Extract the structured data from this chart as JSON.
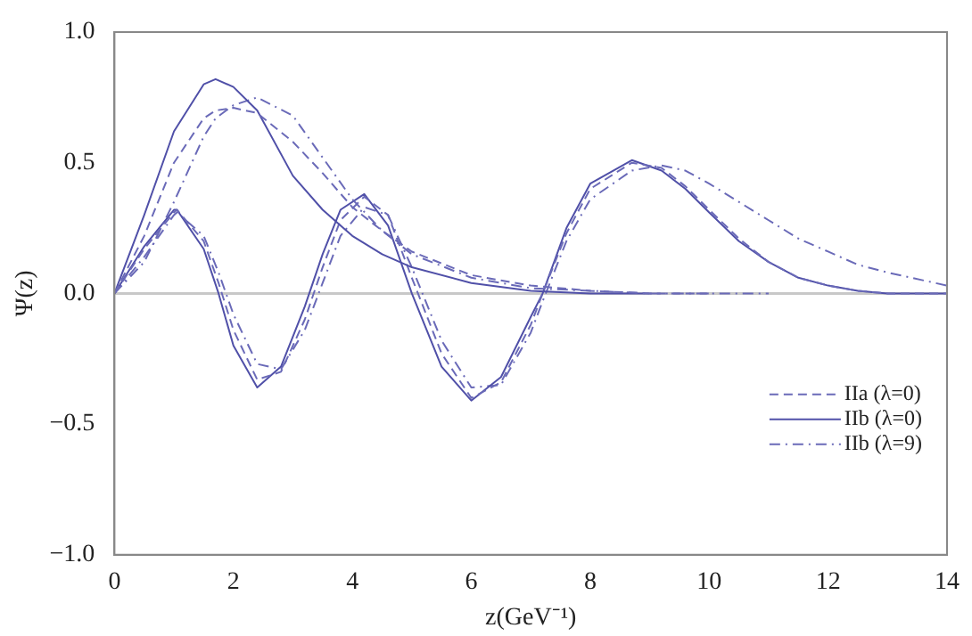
{
  "chart_data": {
    "type": "line",
    "xlabel": "z(GeV⁻¹)",
    "ylabel": "Ψ(z)",
    "xlim": [
      0,
      14
    ],
    "xticks": [
      0,
      2,
      4,
      6,
      8,
      10,
      12,
      14
    ],
    "ylim": [
      -1,
      1
    ],
    "yticks": [
      {
        "value": -1,
        "label": "−1.0"
      },
      {
        "value": -0.5,
        "label": "−0.5"
      },
      {
        "value": 0,
        "label": "0.0"
      },
      {
        "value": 0.5,
        "label": "0.5"
      },
      {
        "value": 1,
        "label": "1.0"
      }
    ],
    "grid": false,
    "legend": "bottom right",
    "marker": "none",
    "ref_lines": [
      {
        "axis": "y",
        "value": 0,
        "label": null,
        "color": "#c8c8c8"
      }
    ],
    "series": [
      {
        "name": "IIa (λ=0)",
        "color": "#6a6ab8",
        "line_style": "dashed",
        "x": [
          0,
          0.5,
          1,
          1.5,
          1.7,
          2,
          2.4,
          3,
          3.5,
          4,
          4.5,
          5,
          6,
          7,
          8,
          9,
          10
        ],
        "values": [
          0,
          0.22,
          0.5,
          0.67,
          0.7,
          0.71,
          0.69,
          0.58,
          0.46,
          0.33,
          0.24,
          0.16,
          0.07,
          0.03,
          0.01,
          0,
          0
        ]
      },
      {
        "name": "IIb (λ=0)",
        "color": "#5050a8",
        "line_style": "solid",
        "x": [
          0,
          0.5,
          1,
          1.5,
          1.7,
          2,
          2.4,
          3,
          3.5,
          4,
          4.5,
          5,
          6,
          7,
          8,
          9
        ],
        "values": [
          0,
          0.3,
          0.62,
          0.8,
          0.82,
          0.79,
          0.7,
          0.45,
          0.32,
          0.22,
          0.15,
          0.1,
          0.04,
          0.01,
          0,
          0
        ]
      },
      {
        "name": "IIb (λ=9)",
        "color": "#6a6ab8",
        "line_style": "dashdot",
        "x": [
          0,
          0.5,
          1,
          1.5,
          1.7,
          2,
          2.4,
          3,
          3.5,
          4,
          4.5,
          5,
          6,
          7,
          8,
          9,
          10,
          11
        ],
        "values": [
          0,
          0.12,
          0.35,
          0.6,
          0.67,
          0.72,
          0.75,
          0.68,
          0.52,
          0.36,
          0.24,
          0.15,
          0.06,
          0.02,
          0.01,
          0,
          0,
          0
        ]
      },
      {
        "color": "#6a6ab8",
        "line_style": "dashed",
        "x": [
          0,
          0.5,
          1,
          1.05,
          1.5,
          1.75,
          2,
          2.4,
          2.8,
          3.2,
          3.5,
          3.8,
          4.2,
          4.6,
          5,
          5.5,
          6,
          6.5,
          7,
          7.2,
          7.6,
          8,
          8.7,
          9.2,
          9.6,
          10,
          10.5,
          11,
          11.5,
          12,
          12.5,
          13,
          14
        ],
        "values": [
          0,
          0.17,
          0.31,
          0.32,
          0.2,
          0.04,
          -0.14,
          -0.33,
          -0.3,
          -0.1,
          0.1,
          0.28,
          0.37,
          0.3,
          0.06,
          -0.23,
          -0.4,
          -0.34,
          -0.12,
          0,
          0.23,
          0.4,
          0.5,
          0.48,
          0.41,
          0.32,
          0.21,
          0.12,
          0.06,
          0.03,
          0.01,
          0,
          0
        ]
      },
      {
        "color": "#5050a8",
        "line_style": "solid",
        "x": [
          0,
          0.5,
          1,
          1.05,
          1.5,
          1.75,
          2,
          2.4,
          2.8,
          3.2,
          3.5,
          3.8,
          4.2,
          4.6,
          5,
          5.5,
          6,
          6.5,
          7,
          7.2,
          7.6,
          8,
          8.7,
          9.2,
          9.6,
          10,
          10.5,
          11,
          11.5,
          12,
          12.5,
          13,
          14
        ],
        "values": [
          0,
          0.18,
          0.32,
          0.32,
          0.17,
          0,
          -0.2,
          -0.36,
          -0.28,
          -0.05,
          0.15,
          0.32,
          0.38,
          0.26,
          0,
          -0.28,
          -0.41,
          -0.32,
          -0.09,
          0,
          0.25,
          0.42,
          0.51,
          0.47,
          0.4,
          0.31,
          0.2,
          0.12,
          0.06,
          0.03,
          0.01,
          0,
          0
        ]
      },
      {
        "color": "#6a6ab8",
        "line_style": "dashdot",
        "x": [
          0,
          0.5,
          1,
          1.05,
          1.5,
          1.75,
          2,
          2.4,
          2.8,
          3.2,
          3.5,
          3.8,
          4.2,
          4.6,
          5,
          5.5,
          6,
          6.5,
          7,
          7.2,
          7.6,
          8,
          8.7,
          9.2,
          9.6,
          10,
          10.5,
          11,
          11.5,
          12,
          12.5,
          13,
          14
        ],
        "values": [
          0,
          0.14,
          0.3,
          0.31,
          0.22,
          0.08,
          -0.08,
          -0.27,
          -0.29,
          -0.14,
          0.04,
          0.22,
          0.33,
          0.3,
          0.1,
          -0.18,
          -0.36,
          -0.35,
          -0.15,
          -0.03,
          0.2,
          0.36,
          0.47,
          0.49,
          0.47,
          0.42,
          0.35,
          0.28,
          0.21,
          0.16,
          0.11,
          0.08,
          0.03
        ]
      }
    ]
  }
}
